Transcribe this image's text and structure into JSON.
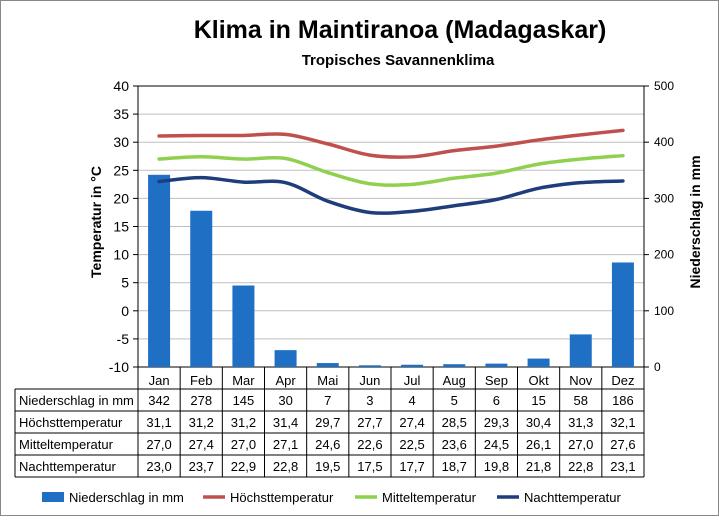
{
  "chart_data": {
    "type": "bar",
    "title": "Klima in Maintiranoa (Madagaskar)",
    "subtitle": "Tropisches  Savannenklima",
    "ylabel_left": "Temperatur in °C",
    "ylabel_right": "Niederschlag in  mm",
    "ylim_left": [
      -10,
      40
    ],
    "ylim_right": [
      0,
      500
    ],
    "yticks_left": [
      "40",
      "35",
      "30",
      "25",
      "20",
      "15",
      "10",
      "5",
      "0",
      "-5",
      "-10"
    ],
    "yticks_right": [
      "500",
      "400",
      "300",
      "200",
      "100",
      "0"
    ],
    "categories": [
      "Jan",
      "Feb",
      "Mar",
      "Apr",
      "Mai",
      "Jun",
      "Jul",
      "Aug",
      "Sep",
      "Okt",
      "Nov",
      "Dez"
    ],
    "grid": true,
    "legend_position": "bottom",
    "series": [
      {
        "name": "Niederschlag in mm",
        "kind": "bar",
        "axis": "right",
        "color": "#1F6FC5",
        "values": [
          342,
          278,
          145,
          30,
          7,
          3,
          4,
          5,
          6,
          15,
          58,
          186
        ],
        "labels": [
          "342",
          "278",
          "145",
          "30",
          "7",
          "3",
          "4",
          "5",
          "6",
          "15",
          "58",
          "186"
        ]
      },
      {
        "name": "Höchsttemperatur",
        "kind": "line",
        "axis": "left",
        "color": "#C0504D",
        "values": [
          31.1,
          31.2,
          31.2,
          31.4,
          29.7,
          27.7,
          27.4,
          28.5,
          29.3,
          30.4,
          31.3,
          32.1
        ],
        "labels": [
          "31,1",
          "31,2",
          "31,2",
          "31,4",
          "29,7",
          "27,7",
          "27,4",
          "28,5",
          "29,3",
          "30,4",
          "31,3",
          "32,1"
        ]
      },
      {
        "name": "Mitteltemperatur",
        "kind": "line",
        "axis": "left",
        "color": "#8FD14F",
        "values": [
          27.0,
          27.4,
          27.0,
          27.1,
          24.6,
          22.6,
          22.5,
          23.6,
          24.5,
          26.1,
          27.0,
          27.6
        ],
        "labels": [
          "27,0",
          "27,4",
          "27,0",
          "27,1",
          "24,6",
          "22,6",
          "22,5",
          "23,6",
          "24,5",
          "26,1",
          "27,0",
          "27,6"
        ]
      },
      {
        "name": "Nachttemperatur",
        "kind": "line",
        "axis": "left",
        "color": "#1F3D7A",
        "values": [
          23.0,
          23.7,
          22.9,
          22.8,
          19.5,
          17.5,
          17.7,
          18.7,
          19.8,
          21.8,
          22.8,
          23.1
        ],
        "labels": [
          "23,0",
          "23,7",
          "22,9",
          "22,8",
          "19,5",
          "17,5",
          "17,7",
          "18,7",
          "19,8",
          "21,8",
          "22,8",
          "23,1"
        ]
      }
    ]
  }
}
